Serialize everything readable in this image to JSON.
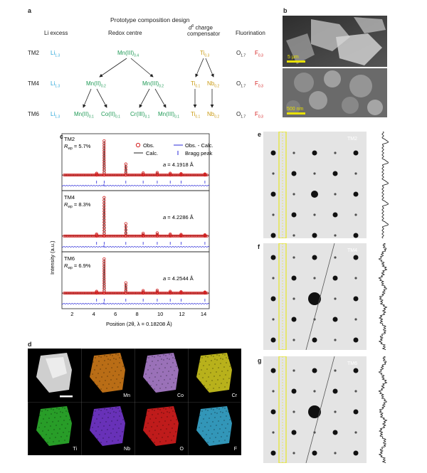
{
  "panel_a": {
    "label": "a",
    "title": "Prototype composition design",
    "col_headers": {
      "li_excess": "Li excess",
      "redox_centre": "Redox centre",
      "charge_comp_pre": "d",
      "charge_comp_sup": "0",
      "charge_comp_post": " charge",
      "charge_comp_line2": "compensator",
      "fluorination": "Fluorination"
    },
    "rows": [
      {
        "name": "TM2"
      },
      {
        "name": "TM4"
      },
      {
        "name": "TM6"
      }
    ],
    "li": "Li",
    "li_sub": "1.3",
    "o": "O",
    "o_sub": "1.7",
    "f": "F",
    "f_sub": "0.3",
    "tm2_redox": "Mn(III)",
    "tm2_redox_sub": "0.4",
    "tm2_ti": "Ti",
    "tm2_ti_sub": "0.3",
    "tm4_redox1": "Mn(II)",
    "tm4_redox1_sub": "0.2",
    "tm4_redox2": "Mn(III)",
    "tm4_redox2_sub": "0.2",
    "tm4_ti": "Ti",
    "tm4_ti_sub": "0.1",
    "tm4_nb": "Nb",
    "tm4_nb_sub": "0.2",
    "tm6_r1": "Mn(II)",
    "tm6_r1_sub": "0.1",
    "tm6_r2": "Co(II)",
    "tm6_r2_sub": "0.1",
    "tm6_r3": "Cr(III)",
    "tm6_r3_sub": "0.1",
    "tm6_r4": "Mn(III)",
    "tm6_r4_sub": "0.1",
    "tm6_ti": "Ti",
    "tm6_ti_sub": "0.1",
    "tm6_nb": "Nb",
    "tm6_nb_sub": "0.2"
  },
  "panel_b": {
    "label": "b",
    "scale_top": "5 μm",
    "scale_bottom": "500 nm"
  },
  "panel_c": {
    "label": "c",
    "ylabel": "Intensity (a.u.)",
    "xlabel": "Position (2θ, λ = 0.18208 Å)",
    "legend": [
      "Obs.",
      "Obs. - Calc.",
      "Calc.",
      "Bragg peak"
    ],
    "x_ticks": [
      "2",
      "4",
      "6",
      "8",
      "10",
      "12",
      "14"
    ],
    "subplots": [
      {
        "name": "TM2",
        "rwp_label": "R",
        "rwp_sub": "wp",
        "rwp_value": " = 5.7%",
        "a_label": "a",
        "a_value": " = 4.1918 Å"
      },
      {
        "name": "TM4",
        "rwp_label": "R",
        "rwp_sub": "wp",
        "rwp_value": " = 8.3%",
        "a_label": "a",
        "a_value": " = 4.2286 Å"
      },
      {
        "name": "TM6",
        "rwp_label": "R",
        "rwp_sub": "wp",
        "rwp_value": " = 6.9%",
        "a_label": "a",
        "a_value": " = 4.2544 Å"
      }
    ]
  },
  "panel_d": {
    "label": "d",
    "maps": [
      {
        "el": "Mn",
        "color": "#d9801a"
      },
      {
        "el": "Co",
        "color": "#b585d8"
      },
      {
        "el": "Cr",
        "color": "#d8d020"
      },
      {
        "el": "Ti",
        "color": "#2fb82f"
      },
      {
        "el": "Nb",
        "color": "#7a3ad8"
      },
      {
        "el": "O",
        "color": "#e02020"
      },
      {
        "el": "F",
        "color": "#3bb0d8"
      }
    ]
  },
  "panel_e": {
    "label": "e",
    "name": "TM2"
  },
  "panel_f": {
    "label": "f",
    "name": "TM4"
  },
  "panel_g": {
    "label": "g",
    "name": "TM6"
  },
  "chart_data": {
    "type": "line",
    "title": "",
    "xlabel": "Position (2θ, λ = 0.18208 Å)",
    "ylabel": "Intensity (a.u.)",
    "xlim": [
      1,
      14.6
    ],
    "bragg_peaks_2theta": [
      4.2,
      4.9,
      6.9,
      8.5,
      9.8,
      11.0,
      12.0,
      14.2
    ],
    "series": [
      {
        "name": "TM2",
        "peaks": [
          {
            "x": 4.2,
            "rel": 0.05
          },
          {
            "x": 4.9,
            "rel": 1.0
          },
          {
            "x": 6.9,
            "rel": 0.32
          },
          {
            "x": 8.5,
            "rel": 0.06
          },
          {
            "x": 9.8,
            "rel": 0.07
          },
          {
            "x": 11.0,
            "rel": 0.05
          },
          {
            "x": 12.0,
            "rel": 0.04
          },
          {
            "x": 14.2,
            "rel": 0.03
          }
        ]
      },
      {
        "name": "TM4",
        "peaks": [
          {
            "x": 4.2,
            "rel": 0.05
          },
          {
            "x": 4.9,
            "rel": 1.0
          },
          {
            "x": 6.9,
            "rel": 0.32
          },
          {
            "x": 8.5,
            "rel": 0.07
          },
          {
            "x": 9.8,
            "rel": 0.08
          },
          {
            "x": 11.0,
            "rel": 0.05
          },
          {
            "x": 12.0,
            "rel": 0.04
          },
          {
            "x": 14.2,
            "rel": 0.03
          }
        ]
      },
      {
        "name": "TM6",
        "peaks": [
          {
            "x": 4.2,
            "rel": 0.05
          },
          {
            "x": 4.9,
            "rel": 1.0
          },
          {
            "x": 6.9,
            "rel": 0.3
          },
          {
            "x": 8.5,
            "rel": 0.07
          },
          {
            "x": 9.8,
            "rel": 0.08
          },
          {
            "x": 11.0,
            "rel": 0.05
          },
          {
            "x": 12.0,
            "rel": 0.04
          },
          {
            "x": 14.2,
            "rel": 0.03
          }
        ]
      }
    ]
  }
}
